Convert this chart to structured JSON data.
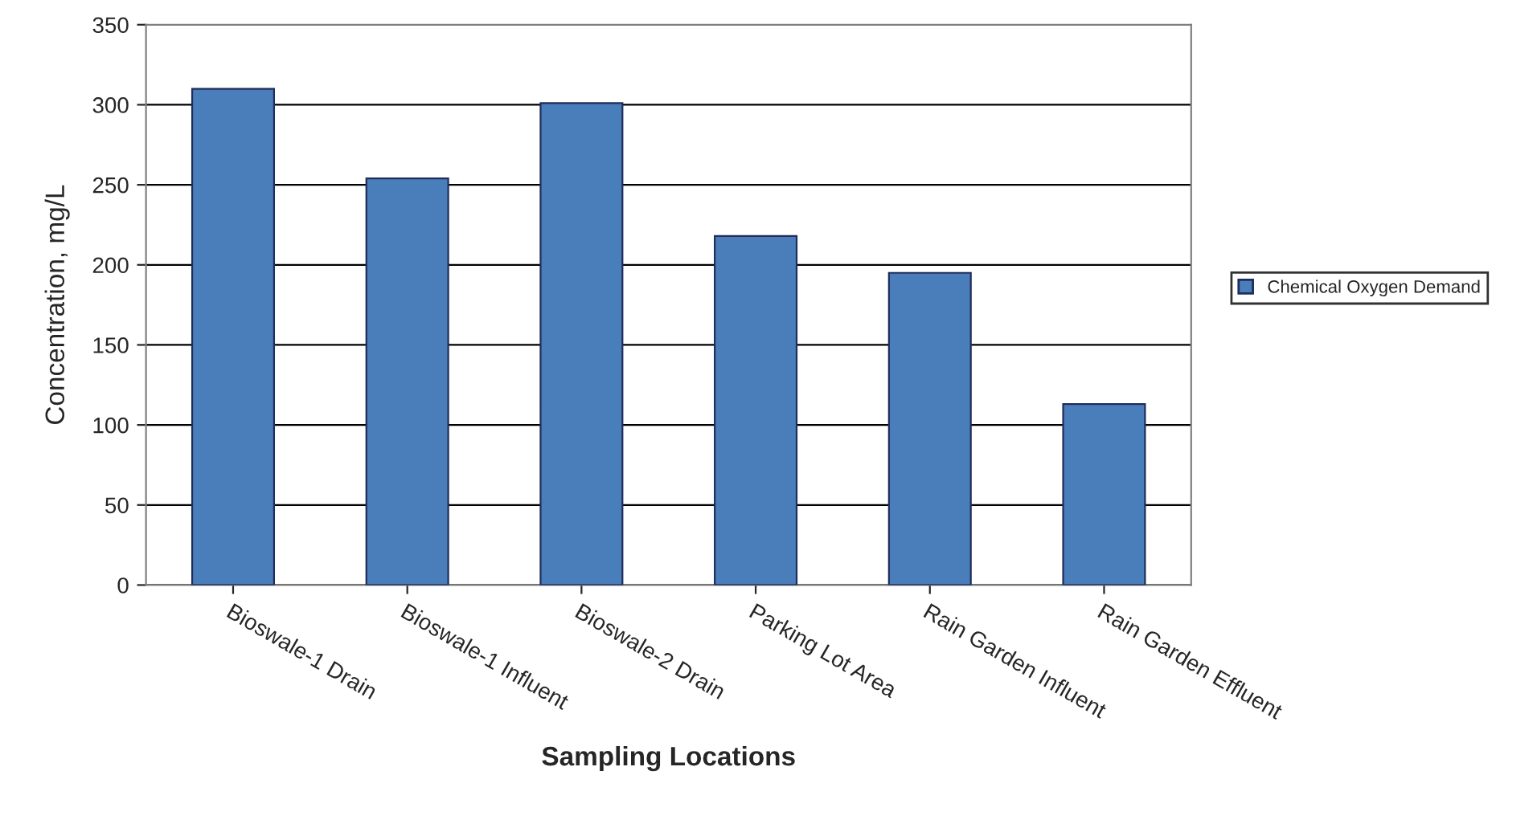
{
  "chart_data": {
    "type": "bar",
    "xlabel": "Sampling Locations",
    "ylabel": "Concentration, mg/L",
    "categories": [
      "Bioswale-1 Drain",
      "Bioswale-1 Influent",
      "Bioswale-2 Drain",
      "Parking Lot Area",
      "Rain Garden Influent",
      "Rain Garden Effluent"
    ],
    "series": [
      {
        "name": "Chemical Oxygen Demand",
        "color": "#4a7ebb",
        "values": [
          310,
          254,
          301,
          218,
          195,
          113
        ]
      }
    ],
    "ylim": [
      0,
      350
    ],
    "yticks": [
      0,
      50,
      100,
      150,
      200,
      250,
      300,
      350
    ],
    "grid": "y",
    "legend": "right"
  }
}
